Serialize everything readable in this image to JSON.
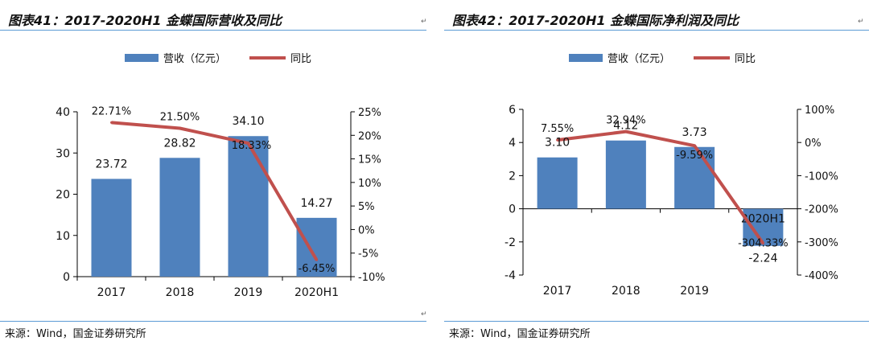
{
  "charts": [
    {
      "title": "图表41：2017-2020H1 金蝶国际营收及同比",
      "source": "来源：Wind，国金证券研究所",
      "legend": [
        "营收（亿元）",
        "同比"
      ],
      "colors": {
        "bar": "#4f81bd",
        "line": "#c0504d"
      },
      "chart_data": {
        "type": "bar+line",
        "categories": [
          "2017",
          "2018",
          "2019",
          "2020H1"
        ],
        "series": [
          {
            "name": "营收（亿元）",
            "type": "bar",
            "axis": "left",
            "values": [
              23.72,
              28.82,
              34.1,
              14.27
            ],
            "labels": [
              "23.72",
              "28.82",
              "34.10",
              "14.27"
            ]
          },
          {
            "name": "同比",
            "type": "line",
            "axis": "right",
            "values": [
              22.71,
              21.5,
              18.33,
              -6.45
            ],
            "labels": [
              "22.71%",
              "21.50%",
              "18.33%",
              "-6.45%"
            ]
          }
        ],
        "y_left": {
          "min": 0,
          "max": 40,
          "step": 10,
          "ticks": [
            "0",
            "10",
            "20",
            "30",
            "40"
          ]
        },
        "y_right": {
          "min": -10,
          "max": 25,
          "step": 5,
          "ticks": [
            "-10%",
            "-5%",
            "0%",
            "5%",
            "10%",
            "15%",
            "20%",
            "25%"
          ]
        },
        "legend_position": "top-center",
        "grid": false
      }
    },
    {
      "title": "图表42：2017-2020H1 金蝶国际净利润及同比",
      "source": "来源：Wind，国金证券研究所",
      "legend": [
        "营收（亿元）",
        "同比"
      ],
      "colors": {
        "bar": "#4f81bd",
        "line": "#c0504d"
      },
      "chart_data": {
        "type": "bar+line",
        "categories": [
          "2017",
          "2018",
          "2019",
          "2020H1"
        ],
        "series": [
          {
            "name": "营收（亿元）",
            "type": "bar",
            "axis": "left",
            "values": [
              3.1,
              4.12,
              3.73,
              -2.24
            ],
            "labels": [
              "3.10",
              "4.12",
              "3.73",
              "-2.24"
            ]
          },
          {
            "name": "同比",
            "type": "line",
            "axis": "right",
            "values": [
              7.55,
              32.94,
              -9.59,
              -304.33
            ],
            "labels": [
              "7.55%",
              "32.94%",
              "-9.59%",
              "-304.33%"
            ]
          }
        ],
        "y_left": {
          "min": -4,
          "max": 6,
          "step": 2,
          "ticks": [
            "-4",
            "-2",
            "0",
            "2",
            "4",
            "6"
          ]
        },
        "y_right": {
          "min": -400,
          "max": 100,
          "step": 100,
          "ticks": [
            "-400%",
            "-300%",
            "-200%",
            "-100%",
            "0%",
            "100%"
          ]
        },
        "legend_position": "top-center",
        "grid": false
      }
    }
  ]
}
